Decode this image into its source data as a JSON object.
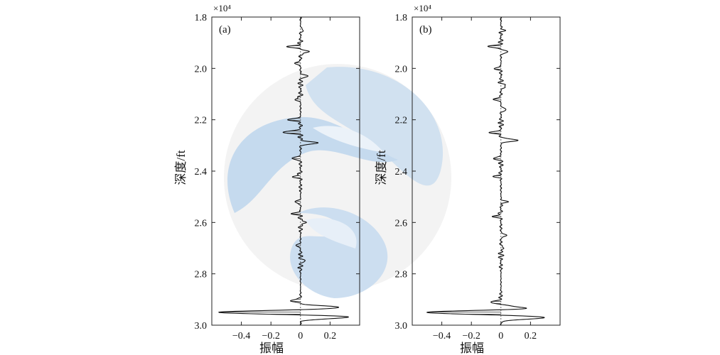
{
  "chart_data": [
    {
      "type": "line",
      "panel_label": "(a)",
      "orientation": "vertical-trace",
      "xlabel": "振幅",
      "ylabel": "深度/ft",
      "y_multiplier": "×10⁴",
      "xlim": [
        -0.6,
        0.4
      ],
      "ylim": [
        1.8,
        3.0
      ],
      "y_inverted": true,
      "xticks": [
        "−0.4",
        "−0.2",
        "0",
        "0.2"
      ],
      "yticks": [
        "1.8",
        "2.0",
        "2.2",
        "2.4",
        "2.6",
        "2.8",
        "3.0"
      ],
      "grid": false,
      "series": [
        {
          "values": [
            [
              0.0,
              1.8
            ],
            [
              0.02,
              1.85
            ],
            [
              -0.08,
              1.915
            ],
            [
              0.06,
              1.935
            ],
            [
              -0.04,
              1.98
            ],
            [
              0.05,
              2.03
            ],
            [
              -0.04,
              2.12
            ],
            [
              -0.08,
              2.2
            ],
            [
              -0.12,
              2.248
            ],
            [
              0.12,
              2.29
            ],
            [
              -0.06,
              2.35
            ],
            [
              -0.05,
              2.42
            ],
            [
              -0.04,
              2.52
            ],
            [
              -0.05,
              2.565
            ],
            [
              0.04,
              2.6
            ],
            [
              -0.03,
              2.69
            ],
            [
              0.03,
              2.75
            ],
            [
              -0.07,
              2.905
            ],
            [
              0.28,
              2.932
            ],
            [
              -0.56,
              2.95
            ],
            [
              0.34,
              2.968
            ],
            [
              0.0,
              3.0
            ]
          ]
        }
      ]
    },
    {
      "type": "line",
      "panel_label": "(b)",
      "orientation": "vertical-trace",
      "xlabel": "振幅",
      "ylabel": "深度/ft",
      "y_multiplier": "×10⁴",
      "xlim": [
        -0.6,
        0.4
      ],
      "ylim": [
        1.8,
        3.0
      ],
      "y_inverted": true,
      "xticks": [
        "−0.4",
        "−0.2",
        "0",
        "0.2"
      ],
      "yticks": [
        "1.8",
        "2.0",
        "2.2",
        "2.4",
        "2.6",
        "2.8",
        "3.0"
      ],
      "grid": false,
      "series": [
        {
          "values": [
            [
              0.0,
              1.8
            ],
            [
              0.02,
              1.85
            ],
            [
              -0.08,
              1.915
            ],
            [
              0.05,
              1.935
            ],
            [
              -0.04,
              2.0
            ],
            [
              0.04,
              2.07
            ],
            [
              -0.05,
              2.12
            ],
            [
              0.04,
              2.16
            ],
            [
              -0.07,
              2.25
            ],
            [
              0.12,
              2.28
            ],
            [
              -0.05,
              2.35
            ],
            [
              -0.04,
              2.42
            ],
            [
              0.04,
              2.52
            ],
            [
              -0.05,
              2.575
            ],
            [
              0.04,
              2.65
            ],
            [
              0.02,
              2.7
            ],
            [
              -0.07,
              2.91
            ],
            [
              0.2,
              2.935
            ],
            [
              -0.52,
              2.95
            ],
            [
              0.3,
              2.97
            ],
            [
              0.0,
              3.0
            ]
          ]
        }
      ]
    }
  ],
  "colors": {
    "watermark_blue": "#b9d3ea",
    "watermark_light": "#dfeaf5",
    "watermark_grey": "#eeeeee",
    "trace": "#111111",
    "trace_fill": "#555555"
  }
}
